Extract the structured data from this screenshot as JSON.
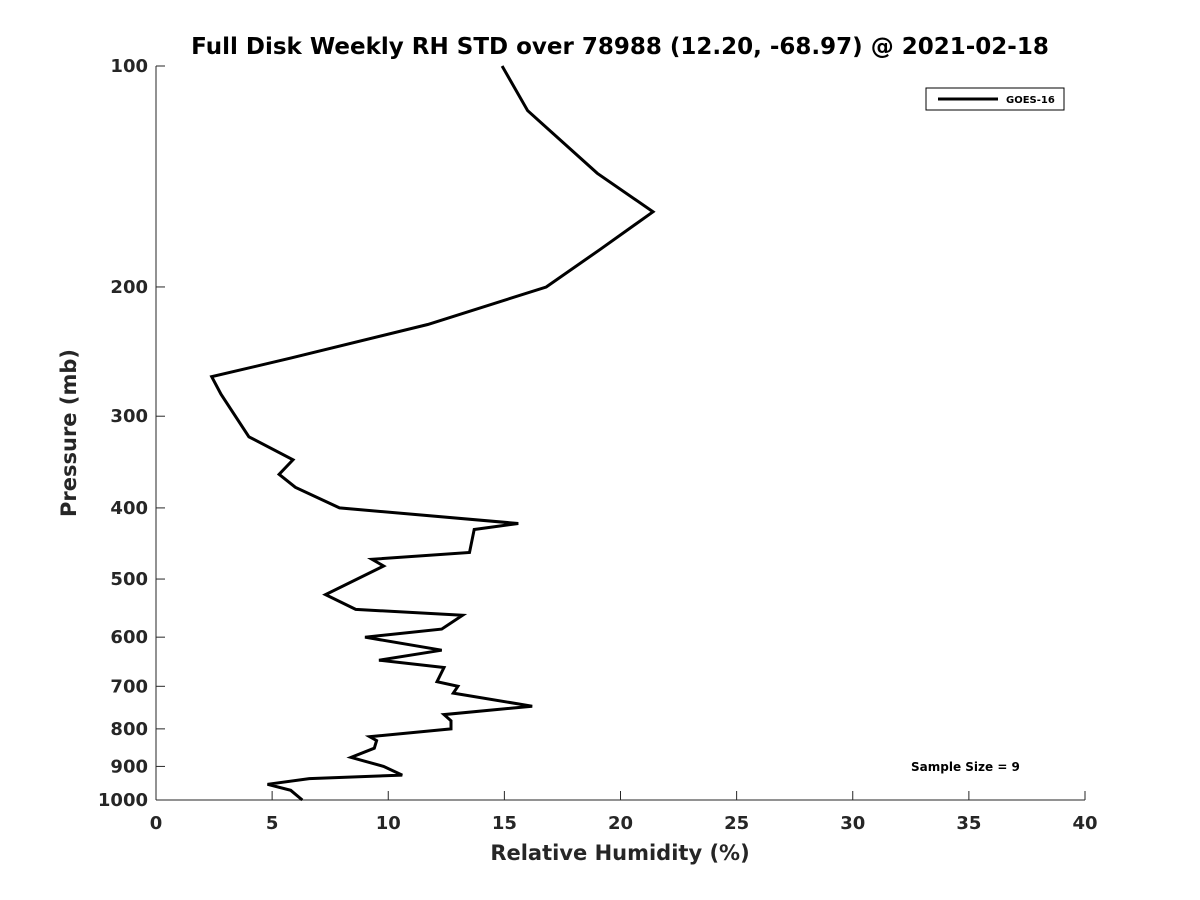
{
  "chart_data": {
    "type": "line",
    "title": "Full Disk Weekly RH STD over 78988 (12.20, -68.97) @ 2021-02-18",
    "xlabel": "Relative Humidity (%)",
    "ylabel": "Pressure (mb)",
    "xlim": [
      0,
      40
    ],
    "ylim": [
      1000,
      100
    ],
    "y_scale": "log",
    "y_direction": "reversed",
    "grid": false,
    "legend_position": "top-right",
    "x_ticks": [
      "0",
      "5",
      "10",
      "15",
      "20",
      "25",
      "30",
      "35",
      "40"
    ],
    "y_ticks": [
      "100",
      "200",
      "300",
      "400",
      "500",
      "600",
      "700",
      "800",
      "900",
      "1000"
    ],
    "series": [
      {
        "name": "GOES-16",
        "color": "#000000",
        "points": [
          [
            14.9,
            100
          ],
          [
            16.0,
            115
          ],
          [
            19.0,
            140
          ],
          [
            21.4,
            158
          ],
          [
            19.1,
            178
          ],
          [
            16.8,
            200
          ],
          [
            11.7,
            225
          ],
          [
            5.8,
            250
          ],
          [
            2.4,
            265
          ],
          [
            2.8,
            280
          ],
          [
            4.0,
            320
          ],
          [
            5.9,
            344
          ],
          [
            5.3,
            360
          ],
          [
            6.0,
            375
          ],
          [
            7.9,
            400
          ],
          [
            15.6,
            420
          ],
          [
            13.7,
            428
          ],
          [
            13.5,
            460
          ],
          [
            9.3,
            470
          ],
          [
            9.8,
            480
          ],
          [
            7.3,
            525
          ],
          [
            8.6,
            550
          ],
          [
            13.2,
            560
          ],
          [
            12.3,
            585
          ],
          [
            9.0,
            600
          ],
          [
            12.3,
            625
          ],
          [
            9.6,
            645
          ],
          [
            12.4,
            660
          ],
          [
            12.1,
            690
          ],
          [
            13.0,
            700
          ],
          [
            12.8,
            715
          ],
          [
            16.2,
            745
          ],
          [
            12.4,
            765
          ],
          [
            12.7,
            780
          ],
          [
            12.7,
            800
          ],
          [
            9.2,
            820
          ],
          [
            9.5,
            830
          ],
          [
            9.4,
            850
          ],
          [
            8.4,
            875
          ],
          [
            9.8,
            900
          ],
          [
            10.6,
            925
          ],
          [
            6.6,
            935
          ],
          [
            4.8,
            952
          ],
          [
            5.8,
            970
          ],
          [
            6.3,
            1000
          ]
        ]
      }
    ],
    "annotation": "Sample Size = 9"
  }
}
